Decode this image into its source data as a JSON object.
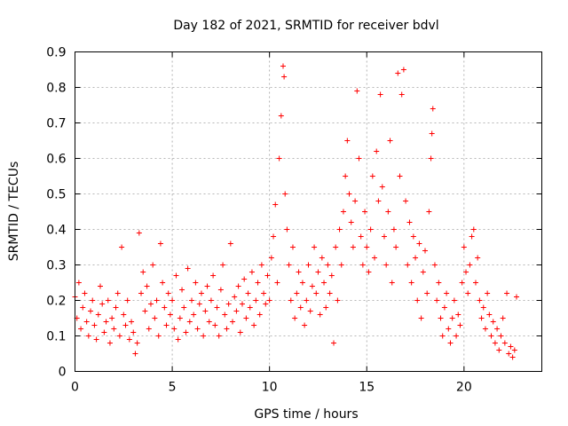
{
  "chart_data": {
    "type": "scatter",
    "title": "Day 182 of 2021, SRMTID for receiver bdvl",
    "xlabel": "GPS time / hours",
    "ylabel": "SRMTID / TECUs",
    "xlim": [
      0,
      24
    ],
    "ylim": [
      0,
      0.9
    ],
    "xticks": [
      0,
      5,
      10,
      15,
      20
    ],
    "xtick_labels": [
      "0",
      "5",
      "10",
      "15",
      "20"
    ],
    "yticks": [
      0,
      0.1,
      0.2,
      0.3,
      0.4,
      0.5,
      0.6,
      0.7,
      0.8,
      0.9
    ],
    "ytick_labels": [
      "0",
      "0.1",
      "0.2",
      "0.3",
      "0.4",
      "0.5",
      "0.6",
      "0.7",
      "0.8",
      "0.9"
    ],
    "grid": true,
    "marker": "+",
    "color": "#ff0000",
    "series": [
      {
        "name": "SRMTID",
        "points": [
          [
            0.0,
            0.21
          ],
          [
            0.1,
            0.15
          ],
          [
            0.2,
            0.25
          ],
          [
            0.3,
            0.12
          ],
          [
            0.4,
            0.18
          ],
          [
            0.5,
            0.22
          ],
          [
            0.6,
            0.14
          ],
          [
            0.7,
            0.1
          ],
          [
            0.8,
            0.17
          ],
          [
            0.9,
            0.2
          ],
          [
            1.0,
            0.13
          ],
          [
            1.1,
            0.09
          ],
          [
            1.2,
            0.16
          ],
          [
            1.3,
            0.24
          ],
          [
            1.4,
            0.19
          ],
          [
            1.5,
            0.11
          ],
          [
            1.6,
            0.14
          ],
          [
            1.7,
            0.2
          ],
          [
            1.8,
            0.08
          ],
          [
            1.9,
            0.15
          ],
          [
            2.0,
            0.12
          ],
          [
            2.1,
            0.18
          ],
          [
            2.2,
            0.22
          ],
          [
            2.3,
            0.1
          ],
          [
            2.4,
            0.35
          ],
          [
            2.5,
            0.16
          ],
          [
            2.6,
            0.13
          ],
          [
            2.7,
            0.2
          ],
          [
            2.8,
            0.09
          ],
          [
            2.9,
            0.14
          ],
          [
            3.0,
            0.11
          ],
          [
            3.1,
            0.05
          ],
          [
            3.2,
            0.08
          ],
          [
            3.3,
            0.39
          ],
          [
            3.4,
            0.22
          ],
          [
            3.5,
            0.28
          ],
          [
            3.6,
            0.17
          ],
          [
            3.7,
            0.24
          ],
          [
            3.8,
            0.12
          ],
          [
            3.9,
            0.19
          ],
          [
            4.0,
            0.3
          ],
          [
            4.1,
            0.15
          ],
          [
            4.2,
            0.2
          ],
          [
            4.3,
            0.1
          ],
          [
            4.4,
            0.36
          ],
          [
            4.5,
            0.25
          ],
          [
            4.6,
            0.18
          ],
          [
            4.7,
            0.13
          ],
          [
            4.8,
            0.22
          ],
          [
            4.9,
            0.16
          ],
          [
            5.0,
            0.2
          ],
          [
            5.1,
            0.12
          ],
          [
            5.2,
            0.27
          ],
          [
            5.3,
            0.09
          ],
          [
            5.4,
            0.15
          ],
          [
            5.5,
            0.23
          ],
          [
            5.6,
            0.18
          ],
          [
            5.7,
            0.11
          ],
          [
            5.8,
            0.29
          ],
          [
            5.9,
            0.14
          ],
          [
            6.0,
            0.2
          ],
          [
            6.1,
            0.16
          ],
          [
            6.2,
            0.25
          ],
          [
            6.3,
            0.12
          ],
          [
            6.4,
            0.19
          ],
          [
            6.5,
            0.22
          ],
          [
            6.6,
            0.1
          ],
          [
            6.7,
            0.17
          ],
          [
            6.8,
            0.24
          ],
          [
            6.9,
            0.14
          ],
          [
            7.0,
            0.2
          ],
          [
            7.1,
            0.27
          ],
          [
            7.2,
            0.13
          ],
          [
            7.3,
            0.18
          ],
          [
            7.4,
            0.1
          ],
          [
            7.5,
            0.23
          ],
          [
            7.6,
            0.3
          ],
          [
            7.7,
            0.16
          ],
          [
            7.8,
            0.12
          ],
          [
            7.9,
            0.19
          ],
          [
            8.0,
            0.36
          ],
          [
            8.1,
            0.14
          ],
          [
            8.2,
            0.21
          ],
          [
            8.3,
            0.17
          ],
          [
            8.4,
            0.24
          ],
          [
            8.5,
            0.11
          ],
          [
            8.6,
            0.19
          ],
          [
            8.7,
            0.26
          ],
          [
            8.8,
            0.15
          ],
          [
            8.9,
            0.22
          ],
          [
            9.0,
            0.18
          ],
          [
            9.1,
            0.28
          ],
          [
            9.2,
            0.13
          ],
          [
            9.3,
            0.2
          ],
          [
            9.4,
            0.25
          ],
          [
            9.5,
            0.16
          ],
          [
            9.6,
            0.3
          ],
          [
            9.7,
            0.22
          ],
          [
            9.8,
            0.19
          ],
          [
            9.9,
            0.27
          ],
          [
            10.0,
            0.2
          ],
          [
            10.1,
            0.32
          ],
          [
            10.2,
            0.38
          ],
          [
            10.3,
            0.47
          ],
          [
            10.4,
            0.25
          ],
          [
            10.5,
            0.6
          ],
          [
            10.6,
            0.72
          ],
          [
            10.7,
            0.86
          ],
          [
            10.75,
            0.83
          ],
          [
            10.8,
            0.5
          ],
          [
            10.9,
            0.4
          ],
          [
            11.0,
            0.3
          ],
          [
            11.1,
            0.2
          ],
          [
            11.2,
            0.35
          ],
          [
            11.3,
            0.15
          ],
          [
            11.4,
            0.22
          ],
          [
            11.5,
            0.28
          ],
          [
            11.6,
            0.18
          ],
          [
            11.7,
            0.25
          ],
          [
            11.8,
            0.13
          ],
          [
            11.9,
            0.2
          ],
          [
            12.0,
            0.3
          ],
          [
            12.1,
            0.17
          ],
          [
            12.2,
            0.24
          ],
          [
            12.3,
            0.35
          ],
          [
            12.4,
            0.22
          ],
          [
            12.5,
            0.28
          ],
          [
            12.6,
            0.16
          ],
          [
            12.7,
            0.32
          ],
          [
            12.8,
            0.25
          ],
          [
            12.9,
            0.18
          ],
          [
            13.0,
            0.3
          ],
          [
            13.1,
            0.22
          ],
          [
            13.2,
            0.27
          ],
          [
            13.3,
            0.08
          ],
          [
            13.4,
            0.35
          ],
          [
            13.5,
            0.2
          ],
          [
            13.6,
            0.4
          ],
          [
            13.7,
            0.3
          ],
          [
            13.8,
            0.45
          ],
          [
            13.9,
            0.55
          ],
          [
            14.0,
            0.65
          ],
          [
            14.1,
            0.5
          ],
          [
            14.2,
            0.42
          ],
          [
            14.3,
            0.35
          ],
          [
            14.4,
            0.48
          ],
          [
            14.5,
            0.79
          ],
          [
            14.6,
            0.6
          ],
          [
            14.7,
            0.38
          ],
          [
            14.8,
            0.3
          ],
          [
            14.9,
            0.45
          ],
          [
            15.0,
            0.35
          ],
          [
            15.1,
            0.28
          ],
          [
            15.2,
            0.4
          ],
          [
            15.3,
            0.55
          ],
          [
            15.4,
            0.32
          ],
          [
            15.5,
            0.62
          ],
          [
            15.6,
            0.48
          ],
          [
            15.7,
            0.78
          ],
          [
            15.8,
            0.52
          ],
          [
            15.9,
            0.38
          ],
          [
            16.0,
            0.3
          ],
          [
            16.1,
            0.45
          ],
          [
            16.2,
            0.65
          ],
          [
            16.3,
            0.25
          ],
          [
            16.4,
            0.4
          ],
          [
            16.5,
            0.35
          ],
          [
            16.6,
            0.84
          ],
          [
            16.7,
            0.55
          ],
          [
            16.8,
            0.78
          ],
          [
            16.9,
            0.85
          ],
          [
            17.0,
            0.48
          ],
          [
            17.1,
            0.3
          ],
          [
            17.2,
            0.42
          ],
          [
            17.3,
            0.25
          ],
          [
            17.4,
            0.38
          ],
          [
            17.5,
            0.32
          ],
          [
            17.6,
            0.2
          ],
          [
            17.7,
            0.36
          ],
          [
            17.8,
            0.15
          ],
          [
            17.9,
            0.28
          ],
          [
            18.0,
            0.34
          ],
          [
            18.1,
            0.22
          ],
          [
            18.2,
            0.45
          ],
          [
            18.3,
            0.6
          ],
          [
            18.35,
            0.67
          ],
          [
            18.4,
            0.74
          ],
          [
            18.5,
            0.3
          ],
          [
            18.6,
            0.2
          ],
          [
            18.7,
            0.25
          ],
          [
            18.8,
            0.15
          ],
          [
            18.9,
            0.1
          ],
          [
            19.0,
            0.18
          ],
          [
            19.1,
            0.22
          ],
          [
            19.2,
            0.12
          ],
          [
            19.3,
            0.08
          ],
          [
            19.4,
            0.15
          ],
          [
            19.5,
            0.2
          ],
          [
            19.6,
            0.1
          ],
          [
            19.7,
            0.16
          ],
          [
            19.8,
            0.13
          ],
          [
            19.9,
            0.25
          ],
          [
            20.0,
            0.35
          ],
          [
            20.1,
            0.28
          ],
          [
            20.2,
            0.22
          ],
          [
            20.3,
            0.3
          ],
          [
            20.4,
            0.38
          ],
          [
            20.5,
            0.4
          ],
          [
            20.6,
            0.25
          ],
          [
            20.7,
            0.32
          ],
          [
            20.8,
            0.2
          ],
          [
            20.9,
            0.15
          ],
          [
            21.0,
            0.18
          ],
          [
            21.1,
            0.12
          ],
          [
            21.2,
            0.22
          ],
          [
            21.3,
            0.16
          ],
          [
            21.4,
            0.1
          ],
          [
            21.5,
            0.14
          ],
          [
            21.6,
            0.08
          ],
          [
            21.7,
            0.12
          ],
          [
            21.8,
            0.06
          ],
          [
            21.9,
            0.1
          ],
          [
            22.0,
            0.15
          ],
          [
            22.1,
            0.08
          ],
          [
            22.2,
            0.22
          ],
          [
            22.3,
            0.05
          ],
          [
            22.4,
            0.07
          ],
          [
            22.5,
            0.04
          ],
          [
            22.6,
            0.06
          ],
          [
            22.7,
            0.21
          ]
        ]
      }
    ]
  }
}
